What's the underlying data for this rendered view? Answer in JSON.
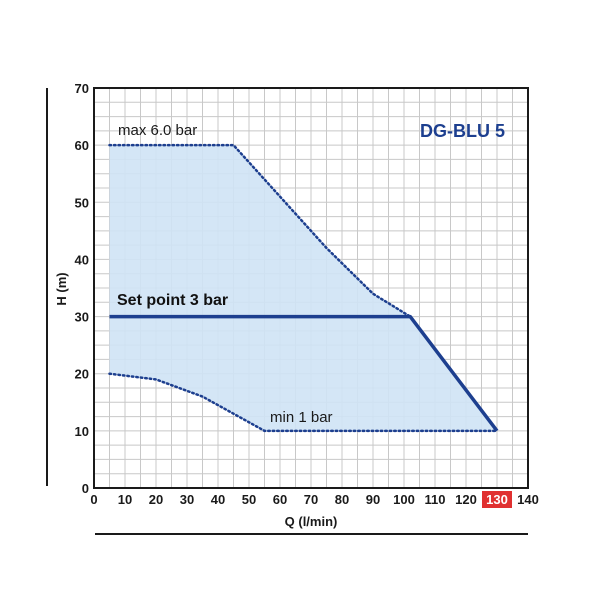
{
  "chart_data": {
    "type": "area",
    "title": "DG-BLU 5",
    "xlabel": "Q (l/min)",
    "ylabel": "H (m)",
    "xlim": [
      0,
      140
    ],
    "ylim": [
      0,
      70
    ],
    "x_ticks": [
      0,
      10,
      20,
      30,
      40,
      50,
      60,
      70,
      80,
      90,
      100,
      110,
      120,
      130,
      140
    ],
    "y_ticks": [
      0,
      10,
      20,
      30,
      40,
      50,
      60,
      70
    ],
    "highlight_x_tick": 130,
    "grid": true,
    "region": {
      "upper_boundary": [
        [
          5,
          60
        ],
        [
          45,
          60
        ],
        [
          60,
          51
        ],
        [
          75,
          42
        ],
        [
          90,
          34
        ],
        [
          102,
          30
        ],
        [
          130,
          10
        ]
      ],
      "lower_boundary": [
        [
          5,
          20
        ],
        [
          20,
          19
        ],
        [
          35,
          16
        ],
        [
          45,
          13
        ],
        [
          55,
          10
        ],
        [
          130,
          10
        ]
      ]
    },
    "series": [
      {
        "name": "Set point 3 bar",
        "style": "solid",
        "x": [
          5,
          102,
          130
        ],
        "y": [
          30,
          30,
          10
        ]
      },
      {
        "name": "max 6.0 bar",
        "style": "dotted",
        "x": [
          5,
          45,
          60,
          75,
          90,
          102
        ],
        "y": [
          60,
          60,
          51,
          42,
          34,
          30
        ]
      },
      {
        "name": "min 1 bar",
        "style": "dotted",
        "x": [
          5,
          20,
          35,
          45,
          55,
          130
        ],
        "y": [
          20,
          19,
          16,
          13,
          10,
          10
        ]
      }
    ],
    "annotations": {
      "max": "max 6.0 bar",
      "setpoint": "Set point 3 bar",
      "min": "min 1 bar"
    },
    "colors": {
      "region_fill": "#cfe3f5",
      "line": "#1d3f8f",
      "grid": "#c8c8c8",
      "highlight": "#e03030"
    }
  }
}
